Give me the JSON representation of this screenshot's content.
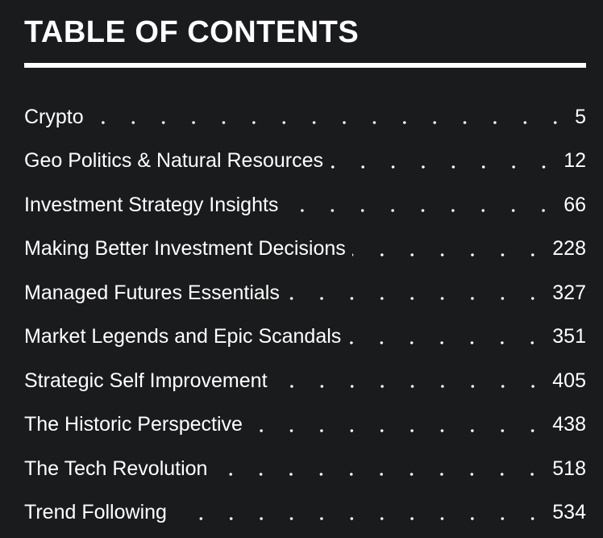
{
  "header": {
    "title": "TABLE OF CONTENTS"
  },
  "toc": {
    "entries": [
      {
        "label": "Crypto",
        "page": "5"
      },
      {
        "label": "Geo Politics & Natural Resources",
        "page": "12"
      },
      {
        "label": "Investment Strategy Insights",
        "page": "66"
      },
      {
        "label": "Making Better Investment Decisions",
        "page": "228"
      },
      {
        "label": "Managed Futures Essentials",
        "page": "327"
      },
      {
        "label": "Market Legends and Epic Scandals",
        "page": "351"
      },
      {
        "label": "Strategic Self Improvement",
        "page": "405"
      },
      {
        "label": "The Historic Perspective",
        "page": "438"
      },
      {
        "label": "The Tech Revolution",
        "page": "518"
      },
      {
        "label": "Trend Following",
        "page": "534"
      }
    ]
  },
  "colors": {
    "background": "#1a1b1d",
    "text": "#ffffff",
    "rule": "#ffffff"
  }
}
